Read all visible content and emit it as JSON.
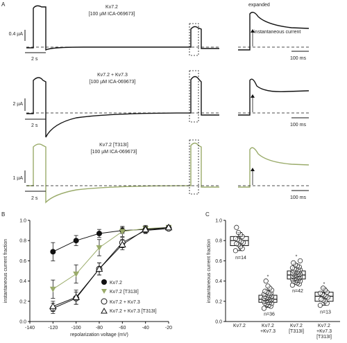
{
  "panels": {
    "A": {
      "letter": "A",
      "expanded_label": "expanded",
      "instantaneous_label": "instantaneous current",
      "rows": [
        {
          "title": "Kv7.2",
          "subtitle": "[100 µM ICA-069673]",
          "scale_y": "0.4 µA",
          "scale_x": "2 s",
          "scale_x_expanded": "100 ms",
          "color": "#111111"
        },
        {
          "title": "Kv7.2 + Kv7.3",
          "subtitle": "[100 µM ICA-069673]",
          "scale_y": "2 µA",
          "scale_x": "2 s",
          "scale_x_expanded": "100 ms",
          "color": "#111111"
        },
        {
          "title": "Kv7.2 [T313I]",
          "subtitle": "[100 µM ICA-069673]",
          "scale_y": "1 µA",
          "scale_x": "2 s",
          "scale_x_expanded": "100 ms",
          "color": "#9aab6a"
        }
      ]
    },
    "B": {
      "letter": "B",
      "ylabel": "instantaneous current fraction",
      "xlabel": "repolarization voltage (mV)",
      "x_ticks": [
        "-140",
        "-120",
        "-100",
        "-80",
        "-60",
        "-40",
        "-20"
      ],
      "y_ticks": [
        "0.0",
        "0.2",
        "0.4",
        "0.6",
        "0.8",
        "1.0"
      ],
      "legend": [
        "Kv7.2",
        "Kv7.2 [T313I]",
        "Kv7.2 + Kv7.3",
        "Kv7.2 + Kv7.3 [T313I]"
      ]
    },
    "C": {
      "letter": "C",
      "ylabel": "instantaneous current fraction",
      "y_ticks": [
        "0.0",
        "0.2",
        "0.4",
        "0.6",
        "0.8",
        "1.0"
      ],
      "groups": [
        {
          "label": [
            "Kv7.2"
          ],
          "n": "n=14",
          "star": ""
        },
        {
          "label": [
            "Kv7.2",
            "+Kv7.3"
          ],
          "n": "n=36",
          "star": "*"
        },
        {
          "label": [
            "Kv7.2",
            "[T313I]"
          ],
          "n": "n=42",
          "star": "*"
        },
        {
          "label": [
            "Kv7.2",
            "+Kv7.3",
            "[T313I]"
          ],
          "n": "n=13",
          "star": "*"
        }
      ]
    }
  },
  "chart_data": [
    {
      "type": "line",
      "xlabel": "repolarization voltage (mV)",
      "ylabel": "instantaneous current fraction",
      "xlim": [
        -140,
        -20
      ],
      "ylim": [
        0,
        1.0
      ],
      "x": [
        -120,
        -100,
        -80,
        -60,
        -40,
        -20
      ],
      "series": [
        {
          "name": "Kv7.2",
          "marker": "filled-circle",
          "color": "#111111",
          "values": [
            0.69,
            0.8,
            0.87,
            0.9,
            0.91,
            0.92
          ],
          "err": [
            0.09,
            0.05,
            0.04,
            0.03,
            0.03,
            0.02
          ]
        },
        {
          "name": "Kv7.2 [T313I]",
          "marker": "filled-triangle-down",
          "color": "#9aab6a",
          "values": [
            0.32,
            0.47,
            0.73,
            0.89,
            0.92,
            0.93
          ],
          "err": [
            0.09,
            0.09,
            0.08,
            0.05,
            0.03,
            0.02
          ]
        },
        {
          "name": "Kv7.2 + Kv7.3",
          "marker": "open-circle",
          "color": "#111111",
          "values": [
            0.13,
            0.23,
            0.52,
            0.78,
            0.9,
            0.92
          ],
          "err": [
            0.05,
            0.06,
            0.06,
            0.05,
            0.03,
            0.02
          ]
        },
        {
          "name": "Kv7.2 + Kv7.3 [T313I]",
          "marker": "open-triangle-up",
          "color": "#111111",
          "values": [
            0.15,
            0.24,
            0.52,
            0.76,
            0.91,
            0.93
          ],
          "err": [
            0.05,
            0.07,
            0.06,
            0.05,
            0.03,
            0.02
          ]
        }
      ]
    },
    {
      "type": "scatter",
      "ylabel": "instantaneous current fraction",
      "ylim": [
        0,
        1.0
      ],
      "categories": [
        "Kv7.2",
        "Kv7.2 +Kv7.3",
        "Kv7.2 [T313I]",
        "Kv7.2 +Kv7.3 [T313I]"
      ],
      "boxes": [
        {
          "n": 14,
          "q1": 0.75,
          "median": 0.8,
          "q3": 0.84,
          "min": 0.7,
          "max": 0.88
        },
        {
          "n": 36,
          "q1": 0.19,
          "median": 0.22,
          "q3": 0.26,
          "min": 0.14,
          "max": 0.31
        },
        {
          "n": 42,
          "q1": 0.42,
          "median": 0.46,
          "q3": 0.5,
          "min": 0.37,
          "max": 0.55
        },
        {
          "n": 13,
          "q1": 0.2,
          "median": 0.25,
          "q3": 0.29,
          "min": 0.16,
          "max": 0.33
        }
      ],
      "points": [
        [
          0.7,
          0.72,
          0.74,
          0.76,
          0.77,
          0.78,
          0.79,
          0.8,
          0.81,
          0.82,
          0.84,
          0.86,
          0.88,
          0.93
        ],
        [
          0.13,
          0.15,
          0.16,
          0.17,
          0.18,
          0.18,
          0.19,
          0.19,
          0.2,
          0.2,
          0.21,
          0.21,
          0.21,
          0.22,
          0.22,
          0.22,
          0.23,
          0.23,
          0.23,
          0.24,
          0.24,
          0.24,
          0.25,
          0.25,
          0.26,
          0.26,
          0.27,
          0.27,
          0.28,
          0.28,
          0.29,
          0.3,
          0.31,
          0.33,
          0.35,
          0.4
        ],
        [
          0.36,
          0.37,
          0.38,
          0.39,
          0.4,
          0.4,
          0.41,
          0.41,
          0.42,
          0.42,
          0.43,
          0.43,
          0.43,
          0.44,
          0.44,
          0.44,
          0.45,
          0.45,
          0.45,
          0.46,
          0.46,
          0.46,
          0.47,
          0.47,
          0.47,
          0.48,
          0.48,
          0.48,
          0.49,
          0.49,
          0.5,
          0.5,
          0.51,
          0.51,
          0.52,
          0.52,
          0.53,
          0.54,
          0.55,
          0.56,
          0.58,
          0.6
        ],
        [
          0.16,
          0.18,
          0.2,
          0.21,
          0.22,
          0.24,
          0.25,
          0.26,
          0.27,
          0.28,
          0.29,
          0.31,
          0.33
        ]
      ]
    }
  ]
}
